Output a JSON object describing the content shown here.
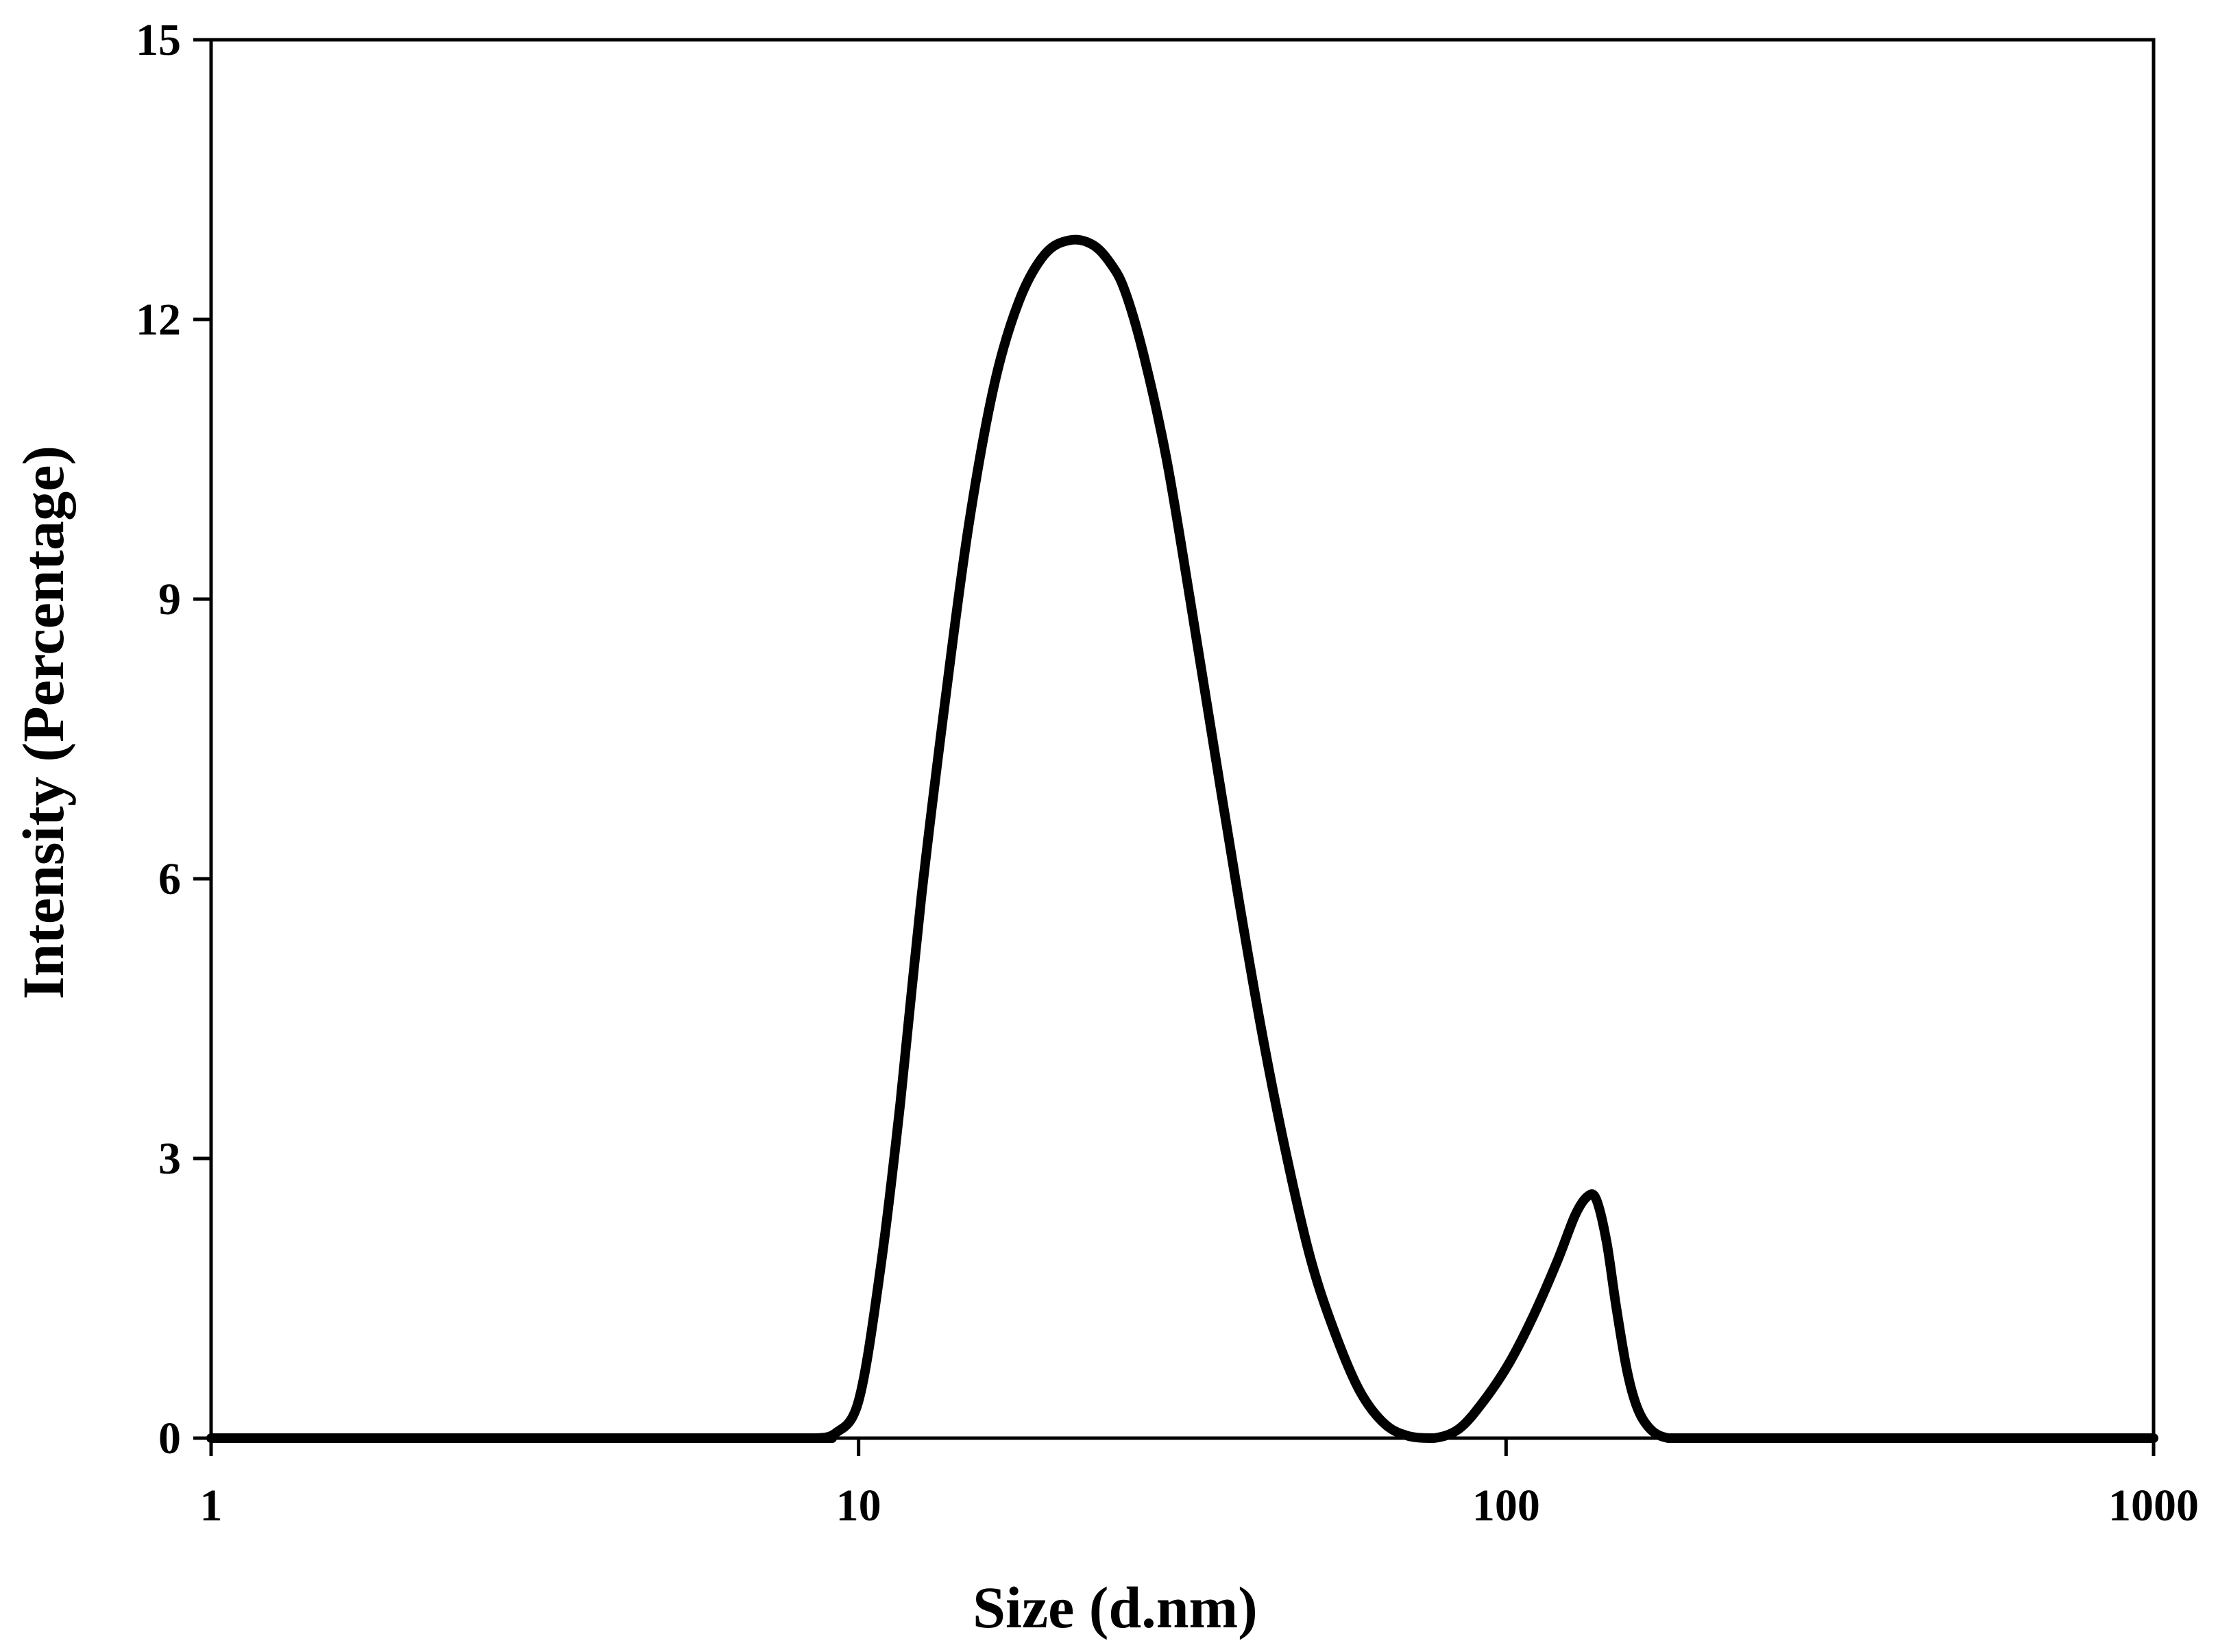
{
  "chart_data": {
    "type": "line",
    "title": "",
    "xlabel": "Size (d.nm)",
    "ylabel": "Intensity (Percentage)",
    "x_scale": "log",
    "xlim": [
      1,
      1000
    ],
    "ylim": [
      0,
      15
    ],
    "x_ticks": [
      1,
      10,
      100,
      1000
    ],
    "x_tick_labels": [
      "1",
      "10",
      "100",
      "1000"
    ],
    "y_ticks": [
      0,
      3,
      6,
      9,
      12,
      15
    ],
    "y_tick_labels": [
      "0",
      "3",
      "6",
      "9",
      "12",
      "15"
    ],
    "grid": false,
    "legend": "none",
    "line_color": "#000000",
    "series": [
      {
        "x": [
          1,
          7.5,
          8.6,
          9.2,
          10.0,
          10.8,
          11.6,
          12.5,
          13.6,
          14.8,
          16.2,
          17.7,
          19.4,
          21.2,
          23.0,
          24.5,
          25.8,
          27.6,
          29.9,
          32.5,
          35.4,
          38.6,
          42.1,
          45.9,
          50.0,
          54.6,
          59.5,
          65.0,
          70.9,
          77.4,
          84.6,
          92.4,
          101,
          110,
          120,
          128,
          134,
          138,
          143,
          148,
          154,
          160,
          168,
          178,
          190,
          205,
          300,
          1000
        ],
        "y": [
          0,
          0,
          0,
          0.05,
          0.4,
          1.8,
          3.6,
          5.8,
          7.9,
          9.8,
          11.3,
          12.2,
          12.7,
          12.85,
          12.8,
          12.6,
          12.3,
          11.6,
          10.5,
          9.0,
          7.4,
          5.8,
          4.3,
          3.0,
          1.9,
          1.1,
          0.5,
          0.15,
          0.02,
          0.0,
          0.1,
          0.4,
          0.8,
          1.3,
          1.9,
          2.4,
          2.6,
          2.55,
          2.1,
          1.4,
          0.7,
          0.3,
          0.08,
          0.0,
          0.0,
          0.0,
          0,
          0
        ]
      }
    ]
  }
}
